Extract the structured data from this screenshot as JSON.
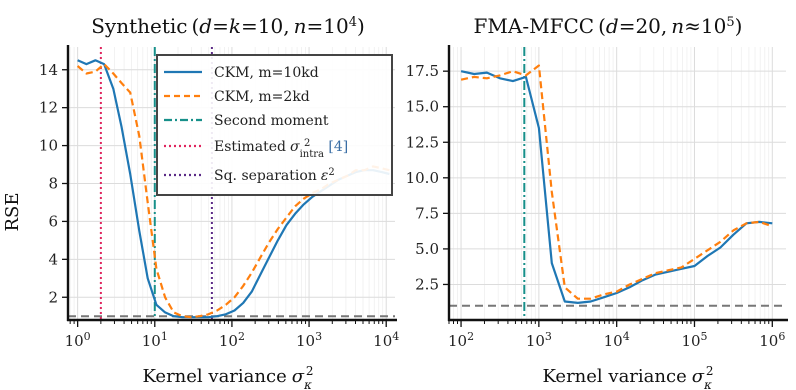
{
  "chart_data": [
    {
      "type": "line",
      "title": "Synthetic (d=k=10, n=10^4)",
      "xlabel": "Kernel variance σ_κ²",
      "ylabel": "RSE",
      "xscale": "log",
      "xlim": [
        0.75,
        13000
      ],
      "ylim": [
        0.8,
        15.2
      ],
      "xticks": [
        1,
        10,
        100,
        1000,
        10000
      ],
      "xtick_labels": [
        "10^0",
        "10^1",
        "10^2",
        "10^3",
        "10^4"
      ],
      "yticks": [
        2,
        4,
        6,
        8,
        10,
        12,
        14
      ],
      "ytick_labels": [
        "2",
        "4",
        "6",
        "8",
        "10",
        "12",
        "14"
      ],
      "grid": true,
      "legend_position": "top-right",
      "series": [
        {
          "name": "CKM, m=10kd",
          "color": "#1f77b4",
          "style": "solid",
          "x": [
            1,
            1.3,
            1.7,
            2.2,
            2.9,
            3.7,
            4.8,
            6.3,
            8.1,
            10.5,
            13.6,
            17.6,
            22.8,
            29.5,
            38.3,
            49.6,
            64.2,
            83.2,
            108,
            140,
            181,
            234,
            303,
            393,
            509,
            659,
            853,
            1105,
            1432,
            1854,
            2402,
            3111,
            4030,
            5220,
            6762,
            8760,
            11000
          ],
          "y": [
            14.5,
            14.3,
            14.5,
            14.3,
            13.0,
            11.0,
            8.5,
            5.5,
            3.0,
            1.6,
            1.2,
            1.0,
            0.95,
            0.95,
            0.95,
            0.95,
            1.0,
            1.1,
            1.3,
            1.7,
            2.3,
            3.2,
            4.1,
            5.0,
            5.8,
            6.4,
            6.9,
            7.3,
            7.6,
            7.9,
            8.2,
            8.4,
            8.6,
            8.7,
            8.7,
            8.6,
            8.5
          ]
        },
        {
          "name": "CKM, m=2kd",
          "color": "#ff7f0e",
          "style": "dashed",
          "x": [
            1,
            1.3,
            1.7,
            2.2,
            2.9,
            3.7,
            4.8,
            6.3,
            8.1,
            10.5,
            13.6,
            17.6,
            22.8,
            29.5,
            38.3,
            49.6,
            64.2,
            83.2,
            108,
            140,
            181,
            234,
            303,
            393,
            509,
            659,
            853,
            1105,
            1432,
            1854,
            2402,
            3111,
            4030,
            5220,
            6762,
            8760,
            11000
          ],
          "y": [
            14.2,
            13.8,
            13.9,
            14.3,
            13.8,
            13.3,
            12.8,
            10.5,
            7.0,
            3.5,
            2.0,
            1.2,
            1.0,
            0.95,
            1.0,
            1.1,
            1.3,
            1.6,
            2.0,
            2.6,
            3.3,
            4.1,
            4.9,
            5.6,
            6.2,
            6.8,
            7.2,
            7.5,
            7.7,
            8.0,
            8.2,
            8.4,
            8.7,
            8.7,
            8.9,
            8.8,
            8.7
          ]
        },
        {
          "name": "Second moment",
          "color": "#17908a",
          "style": "dashdot",
          "vertical_x": 10
        },
        {
          "name": "Estimated σ_intra² [4]",
          "color": "#e0245e",
          "style": "dotted",
          "vertical_x": 2
        },
        {
          "name": "Sq. separation ε²",
          "color": "#5b2a86",
          "style": "dotted",
          "vertical_x": 55
        }
      ],
      "reference_line": {
        "y": 1.0,
        "color": "#777777",
        "style": "dashed"
      }
    },
    {
      "type": "line",
      "title": "FMA-MFCC (d=20, n≈10^5)",
      "xlabel": "Kernel variance σ_κ²",
      "ylabel": "",
      "xscale": "log",
      "xlim": [
        70,
        1500000
      ],
      "ylim": [
        0.0,
        19.2
      ],
      "xticks": [
        100,
        1000,
        10000,
        100000,
        1000000
      ],
      "xtick_labels": [
        "10^2",
        "10^3",
        "10^4",
        "10^5",
        "10^6"
      ],
      "yticks": [
        2.5,
        5.0,
        7.5,
        10.0,
        12.5,
        15.0,
        17.5
      ],
      "ytick_labels": [
        "2.5",
        "5.0",
        "7.5",
        "10.0",
        "12.5",
        "15.0",
        "17.5"
      ],
      "grid": true,
      "series": [
        {
          "name": "CKM, m=10kd",
          "color": "#1f77b4",
          "style": "solid",
          "x": [
            100,
            147,
            215,
            316,
            464,
            681,
            1000,
            1468,
            2154,
            3162,
            4642,
            6813,
            10000,
            14678,
            21544,
            31623,
            46416,
            68129,
            100000,
            146780,
            215440,
            316230,
            464160,
            681290,
            1000000
          ],
          "y": [
            17.5,
            17.3,
            17.4,
            17.0,
            16.8,
            17.1,
            13.5,
            4.0,
            1.3,
            1.2,
            1.3,
            1.6,
            1.9,
            2.3,
            2.8,
            3.2,
            3.4,
            3.6,
            3.8,
            4.5,
            5.1,
            6.0,
            6.8,
            6.9,
            6.8
          ]
        },
        {
          "name": "CKM, m=2kd",
          "color": "#ff7f0e",
          "style": "dashed",
          "x": [
            100,
            147,
            215,
            316,
            464,
            681,
            1000,
            1468,
            2154,
            3162,
            4642,
            6813,
            10000,
            14678,
            21544,
            31623,
            46416,
            68129,
            100000,
            146780,
            215440,
            316230,
            464160,
            681290,
            1000000
          ],
          "y": [
            16.9,
            17.1,
            17.0,
            17.2,
            17.5,
            17.2,
            17.9,
            9.0,
            2.3,
            1.5,
            1.5,
            1.8,
            2.0,
            2.5,
            2.9,
            3.3,
            3.5,
            3.7,
            4.3,
            4.9,
            5.5,
            6.3,
            6.8,
            6.9,
            6.6
          ]
        },
        {
          "name": "Second moment",
          "color": "#17908a",
          "style": "dashdot",
          "vertical_x": 650
        }
      ],
      "reference_line": {
        "y": 1.0,
        "color": "#777777",
        "style": "dashed"
      }
    }
  ],
  "colors": {
    "blue": "#1f77b4",
    "orange": "#ff7f0e",
    "teal": "#17908a",
    "crimson": "#e0245e",
    "purple": "#5b2a86",
    "grey": "#777777"
  }
}
